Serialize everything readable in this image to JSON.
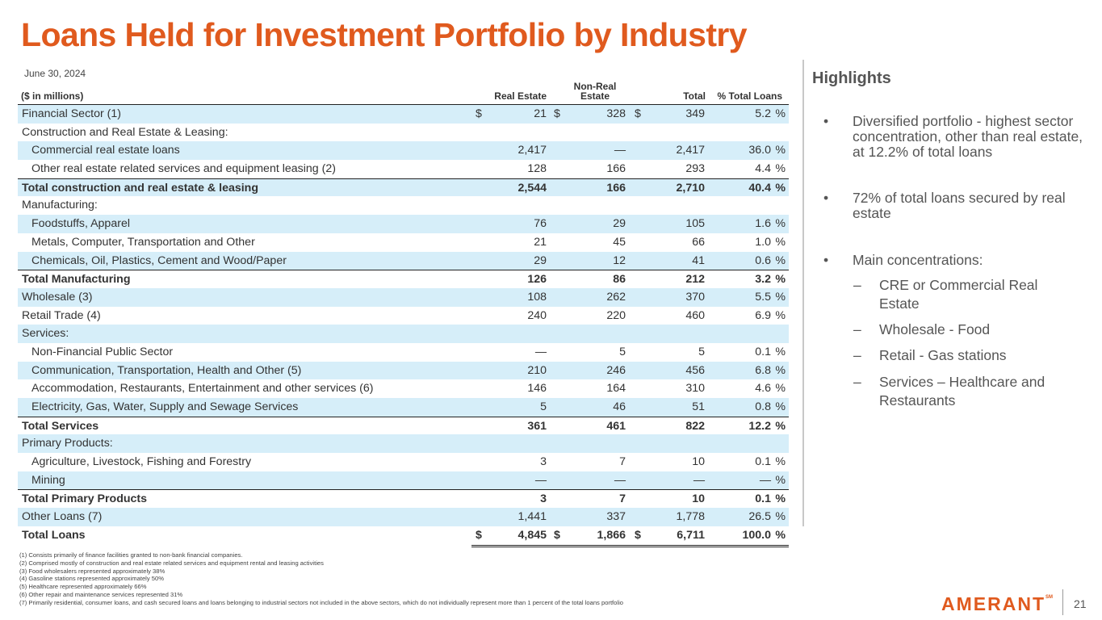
{
  "title": "Loans Held for Investment Portfolio by Industry",
  "date": "June 30, 2024",
  "table": {
    "headers": {
      "category": "($ in millions)",
      "real_estate": "Real Estate",
      "non_real_estate": "Non-Real Estate",
      "total": "Total",
      "pct_total": "% Total Loans"
    },
    "rows": [
      {
        "label": "Financial Sector (1)",
        "re": "21",
        "nre": "328",
        "total": "349",
        "pct": "5.2",
        "dollar": "$",
        "pct_sign": "%"
      },
      {
        "label": "Construction and Real Estate & Leasing:",
        "re": "",
        "nre": "",
        "total": "",
        "pct": "",
        "pct_sign": ""
      },
      {
        "label": "Commercial real estate loans",
        "re": "2,417",
        "nre": "—",
        "total": "2,417",
        "pct": "36.0",
        "pct_sign": "%"
      },
      {
        "label": "Other real estate related services and equipment leasing (2)",
        "re": "128",
        "nre": "166",
        "total": "293",
        "pct": "4.4",
        "pct_sign": "%"
      },
      {
        "label": "Total construction and real estate & leasing",
        "re": "2,544",
        "nre": "166",
        "total": "2,710",
        "pct": "40.4",
        "pct_sign": "%"
      },
      {
        "label": "Manufacturing:",
        "re": "",
        "nre": "",
        "total": "",
        "pct": "",
        "pct_sign": ""
      },
      {
        "label": "Foodstuffs, Apparel",
        "re": "76",
        "nre": "29",
        "total": "105",
        "pct": "1.6",
        "pct_sign": "%"
      },
      {
        "label": "Metals, Computer, Transportation and Other",
        "re": "21",
        "nre": "45",
        "total": "66",
        "pct": "1.0",
        "pct_sign": "%"
      },
      {
        "label": "Chemicals, Oil, Plastics, Cement and Wood/Paper",
        "re": "29",
        "nre": "12",
        "total": "41",
        "pct": "0.6",
        "pct_sign": "%"
      },
      {
        "label": "Total Manufacturing",
        "re": "126",
        "nre": "86",
        "total": "212",
        "pct": "3.2",
        "pct_sign": "%"
      },
      {
        "label": "Wholesale (3)",
        "re": "108",
        "nre": "262",
        "total": "370",
        "pct": "5.5",
        "pct_sign": "%"
      },
      {
        "label": "Retail Trade (4)",
        "re": "240",
        "nre": "220",
        "total": "460",
        "pct": "6.9",
        "pct_sign": "%"
      },
      {
        "label": "Services:",
        "re": "",
        "nre": "",
        "total": "",
        "pct": "",
        "pct_sign": ""
      },
      {
        "label": "Non-Financial Public Sector",
        "re": "—",
        "nre": "5",
        "total": "5",
        "pct": "0.1",
        "pct_sign": "%"
      },
      {
        "label": "Communication, Transportation, Health and Other (5)",
        "re": "210",
        "nre": "246",
        "total": "456",
        "pct": "6.8",
        "pct_sign": "%"
      },
      {
        "label": "Accommodation, Restaurants, Entertainment and other services (6)",
        "re": "146",
        "nre": "164",
        "total": "310",
        "pct": "4.6",
        "pct_sign": "%"
      },
      {
        "label": "Electricity, Gas, Water, Supply and Sewage Services",
        "re": "5",
        "nre": "46",
        "total": "51",
        "pct": "0.8",
        "pct_sign": "%"
      },
      {
        "label": "Total Services",
        "re": "361",
        "nre": "461",
        "total": "822",
        "pct": "12.2",
        "pct_sign": "%"
      },
      {
        "label": "Primary Products:",
        "re": "",
        "nre": "",
        "total": "",
        "pct": "",
        "pct_sign": ""
      },
      {
        "label": "Agriculture, Livestock, Fishing and Forestry",
        "re": "3",
        "nre": "7",
        "total": "10",
        "pct": "0.1",
        "pct_sign": "%"
      },
      {
        "label": "Mining",
        "re": "—",
        "nre": "—",
        "total": "—",
        "pct": "—",
        "pct_sign": "%"
      },
      {
        "label": "Total Primary Products",
        "re": "3",
        "nre": "7",
        "total": "10",
        "pct": "0.1",
        "pct_sign": "%"
      },
      {
        "label": "Other Loans (7)",
        "re": "1,441",
        "nre": "337",
        "total": "1,778",
        "pct": "26.5",
        "pct_sign": "%"
      },
      {
        "label": "Total Loans",
        "re": "4,845",
        "nre": "1,866",
        "total": "6,711",
        "pct": "100.0",
        "dollar": "$",
        "pct_sign": "%"
      }
    ]
  },
  "footnotes": [
    "(1) Consists primarily of finance facilities granted to non-bank financial companies.",
    "(2) Comprised mostly of construction and real estate related services and equipment rental and leasing activities",
    "(3) Food wholesalers represented approximately 38%",
    "(4) Gasoline stations represented approximately 50%",
    "(5) Healthcare represented approximately 66%",
    "(6) Other repair and maintenance services represented 31%",
    "(7) Primarily residential, consumer loans, and cash secured loans and loans belonging to industrial sectors not included in the above sectors, which do not individually represent more than 1 percent of the total loans portfolio"
  ],
  "highlights": {
    "title": "Highlights",
    "bullets": [
      "Diversified portfolio - highest sector concentration, other than real estate, at 12.2% of total loans",
      "72% of total loans secured by real estate",
      "Main concentrations:"
    ],
    "sub_items": [
      "CRE or Commercial Real Estate",
      "Wholesale - Food",
      "Retail - Gas stations",
      "Services – Healthcare and Restaurants"
    ],
    "bullet_glyph": "•",
    "dash_glyph": "–"
  },
  "brand": {
    "logo_text": "AMERANT",
    "logo_mark": "SM",
    "accent": "#e05a1e"
  },
  "page_number": "21"
}
